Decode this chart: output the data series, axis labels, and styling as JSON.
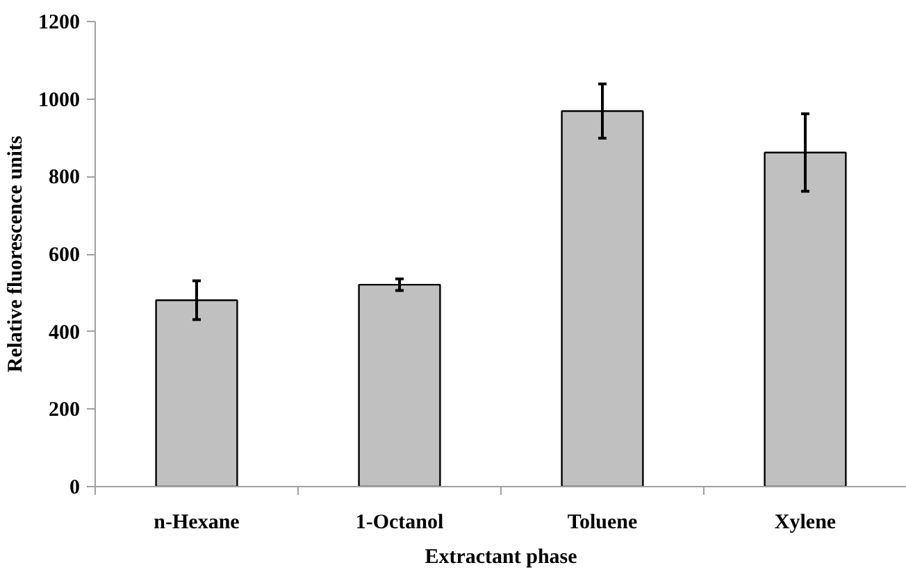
{
  "chart_data": {
    "type": "bar",
    "xlabel": "Extractant phase",
    "ylabel": "Relative fluorescence units",
    "categories": [
      "n-Hexane",
      "1-Octanol",
      "Toluene",
      "Xylene"
    ],
    "values": [
      481,
      521,
      969,
      862
    ],
    "errors": [
      50,
      15,
      70,
      100
    ],
    "color": "#c0c0c0",
    "ylim": [
      0,
      1200
    ],
    "yticks": [
      0,
      200,
      400,
      600,
      800,
      1000,
      1200
    ],
    "grid": false
  }
}
